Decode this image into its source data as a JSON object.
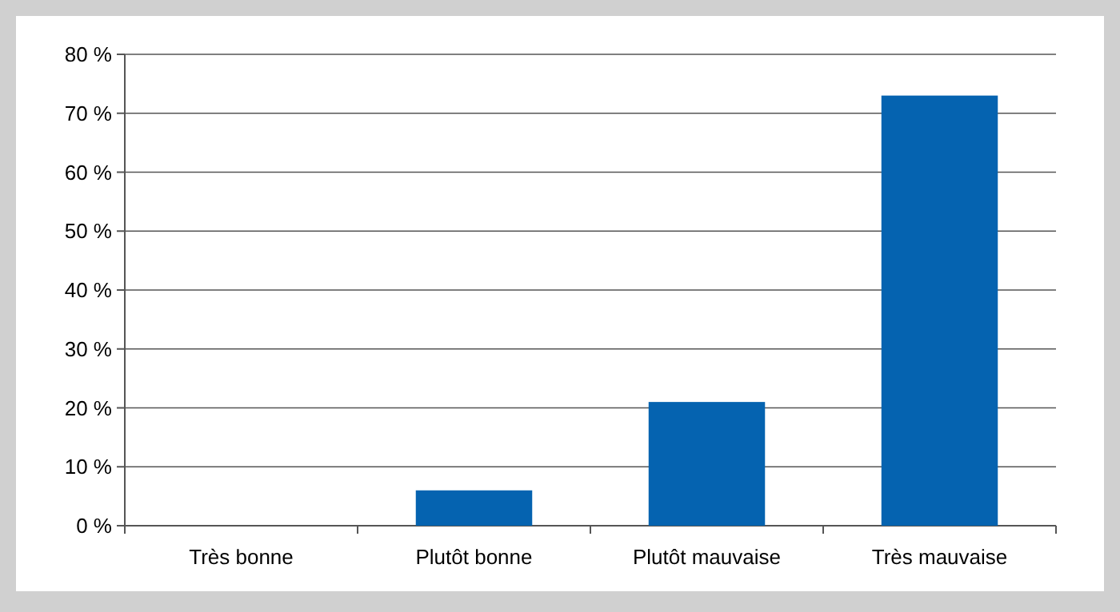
{
  "chart_data": {
    "type": "bar",
    "categories": [
      "Très bonne",
      "Plutôt bonne",
      "Plutôt mauvaise",
      "Très mauvaise"
    ],
    "values": [
      0,
      6,
      21,
      73
    ],
    "color": "#0563b0",
    "ylim": [
      0,
      80
    ],
    "yticks": [
      {
        "value": 0,
        "label": "0 %"
      },
      {
        "value": 10,
        "label": "10 %"
      },
      {
        "value": 20,
        "label": "20 %"
      },
      {
        "value": 30,
        "label": "30 %"
      },
      {
        "value": 40,
        "label": "40 %"
      },
      {
        "value": 50,
        "label": "50 %"
      },
      {
        "value": 60,
        "label": "60 %"
      },
      {
        "value": 70,
        "label": "70 %"
      },
      {
        "value": 80,
        "label": "80 %"
      }
    ],
    "grid": "y"
  }
}
